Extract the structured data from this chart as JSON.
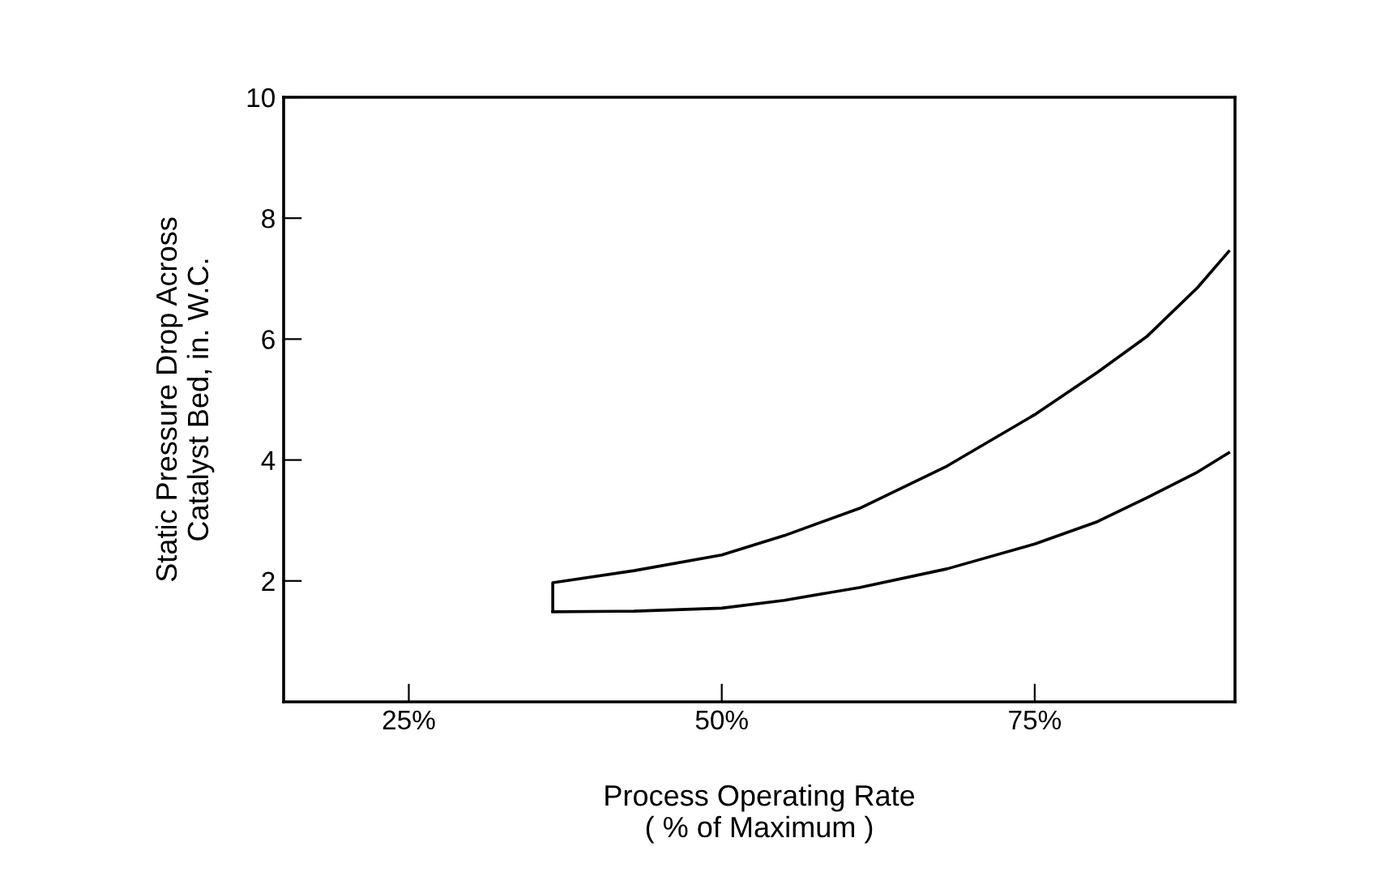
{
  "chart_data": {
    "type": "line",
    "xlabel": "Process Operating Rate\n( % of Maximum )",
    "ylabel": "Static Pressure Drop Across\nCatalyst Bed, in. W.C.",
    "xlim": [
      15,
      91
    ],
    "ylim": [
      0,
      10
    ],
    "xticks": [
      {
        "value": 25,
        "label": "25%"
      },
      {
        "value": 50,
        "label": "50%"
      },
      {
        "value": 75,
        "label": "75%"
      }
    ],
    "yticks": [
      2,
      4,
      6,
      8,
      10
    ],
    "series": [
      {
        "color": "#000000",
        "x": [
          36.5,
          36.5,
          43,
          50,
          55,
          61,
          68,
          75,
          80,
          84,
          88,
          90.5
        ],
        "values": [
          1.5,
          1.97,
          2.17,
          2.43,
          2.75,
          3.2,
          3.9,
          4.75,
          5.45,
          6.05,
          6.85,
          7.45
        ]
      },
      {
        "color": "#000000",
        "x": [
          36.5,
          43,
          50,
          55,
          61,
          68,
          75,
          80,
          84,
          88,
          90.5
        ],
        "values": [
          1.49,
          1.5,
          1.55,
          1.68,
          1.89,
          2.2,
          2.61,
          2.98,
          3.38,
          3.8,
          4.12
        ]
      }
    ],
    "grid": false,
    "legend": false,
    "marker": "none",
    "line_style": "solid"
  }
}
